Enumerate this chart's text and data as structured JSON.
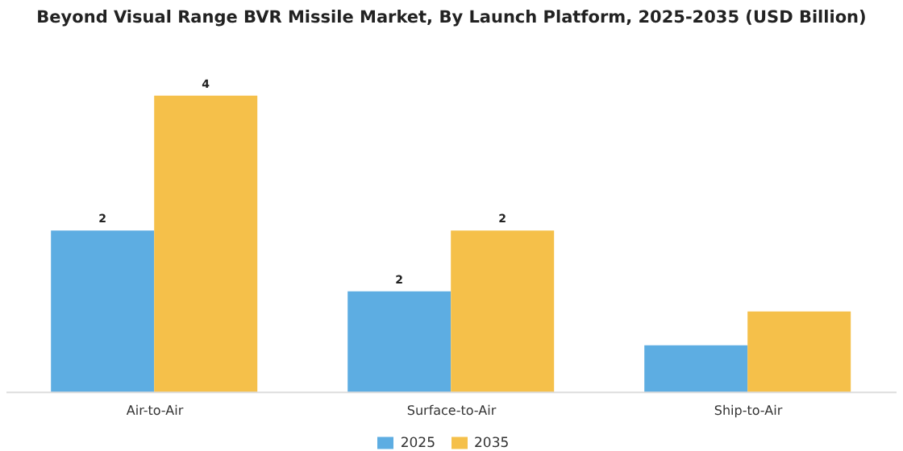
{
  "chart_data": {
    "type": "bar",
    "title": "Beyond Visual Range BVR Missile Market, By Launch Platform, 2025-2035 (USD Billion)",
    "categories": [
      "Air-to-Air",
      "Surface-to-Air",
      "Ship-to-Air"
    ],
    "series": [
      {
        "name": "2025",
        "color": "#5dade2",
        "values": [
          2.4,
          1.5,
          0.7
        ],
        "value_labels": [
          "2",
          "2",
          null
        ]
      },
      {
        "name": "2035",
        "color": "#f5c04a",
        "values": [
          4.4,
          2.4,
          1.2
        ],
        "value_labels": [
          "4",
          "2",
          null
        ]
      }
    ],
    "legend": "bottom",
    "grid": false
  }
}
